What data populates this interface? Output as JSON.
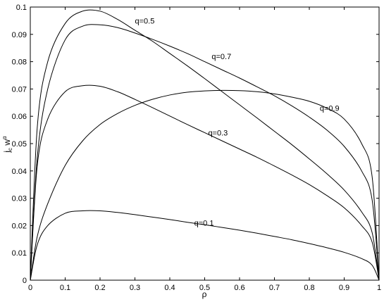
{
  "chart_data": {
    "type": "line",
    "title": "",
    "xlabel": "ρ",
    "ylabel": "j_c w^α",
    "xlim": [
      0,
      1
    ],
    "ylim": [
      0,
      0.1
    ],
    "grid": false,
    "legend": "none (series labelled directly on curves)",
    "x_ticks": [
      "0",
      "0.1",
      "0.2",
      "0.3",
      "0.4",
      "0.5",
      "0.6",
      "0.7",
      "0.8",
      "0.9",
      "1"
    ],
    "y_ticks": [
      "0",
      "0.01",
      "0.02",
      "0.03",
      "0.04",
      "0.05",
      "0.06",
      "0.07",
      "0.08",
      "0.09",
      "0.1"
    ],
    "x": [
      0,
      0.02,
      0.05,
      0.1,
      0.15,
      0.2,
      0.25,
      0.3,
      0.35,
      0.4,
      0.45,
      0.5,
      0.55,
      0.6,
      0.65,
      0.7,
      0.75,
      0.8,
      0.85,
      0.9,
      0.95,
      0.98,
      1.0
    ],
    "series": [
      {
        "name": "q=0.1",
        "values": [
          0,
          0.013,
          0.02,
          0.0245,
          0.0254,
          0.0254,
          0.0248,
          0.024,
          0.0231,
          0.0222,
          0.0212,
          0.0203,
          0.0193,
          0.0183,
          0.0172,
          0.016,
          0.0148,
          0.0134,
          0.0119,
          0.0102,
          0.0079,
          0.0055,
          0
        ],
        "label_at": [
          0.47,
          0.021
        ]
      },
      {
        "name": "q=0.3",
        "values": [
          0,
          0.042,
          0.059,
          0.069,
          0.0712,
          0.071,
          0.069,
          0.0662,
          0.0632,
          0.0601,
          0.057,
          0.054,
          0.051,
          0.048,
          0.045,
          0.0418,
          0.0385,
          0.035,
          0.031,
          0.0265,
          0.02,
          0.014,
          0
        ],
        "label_at": [
          0.51,
          0.054
        ]
      },
      {
        "name": "q=0.5",
        "values": [
          0,
          0.056,
          0.08,
          0.094,
          0.0985,
          0.0985,
          0.0955,
          0.0915,
          0.0875,
          0.083,
          0.0785,
          0.0738,
          0.069,
          0.0642,
          0.0594,
          0.0545,
          0.0496,
          0.0444,
          0.039,
          0.033,
          0.025,
          0.0175,
          0
        ],
        "label_at": [
          0.3,
          0.095
        ]
      },
      {
        "name": "q=0.7",
        "values": [
          0,
          0.045,
          0.07,
          0.088,
          0.093,
          0.0935,
          0.0925,
          0.0905,
          0.0882,
          0.0857,
          0.083,
          0.08,
          0.077,
          0.074,
          0.0708,
          0.0675,
          0.0638,
          0.0597,
          0.055,
          0.049,
          0.04,
          0.0295,
          0
        ],
        "label_at": [
          0.52,
          0.082
        ]
      },
      {
        "name": "q=0.9",
        "values": [
          0,
          0.016,
          0.028,
          0.042,
          0.051,
          0.057,
          0.061,
          0.064,
          0.0662,
          0.0678,
          0.0688,
          0.0693,
          0.0695,
          0.0694,
          0.069,
          0.0682,
          0.067,
          0.0655,
          0.063,
          0.059,
          0.05,
          0.038,
          0
        ],
        "label_at": [
          0.83,
          0.063
        ]
      }
    ]
  }
}
